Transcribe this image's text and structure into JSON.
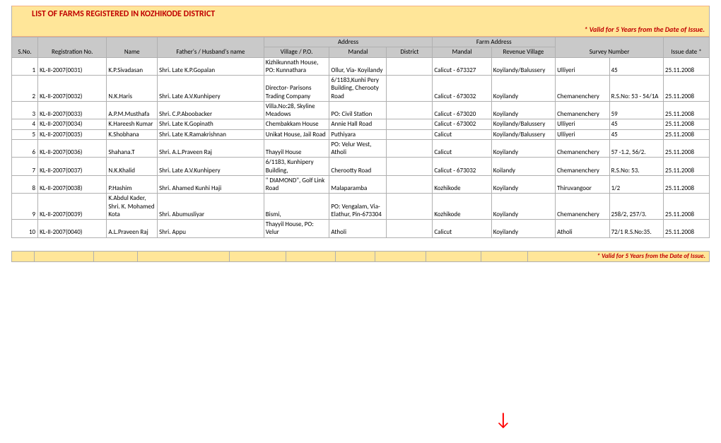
{
  "title": "LIST OF FARMS REGISTERED IN  KOZHIKODE DISTRICT",
  "valid_note": "* Valid for 5 Years from the Date of Issue.",
  "headers": {
    "sno": "S.No.",
    "reg": "Registration No.",
    "name": "Name",
    "father": "Father's / Husband's name",
    "address_group": "Address",
    "farm_group": "Farm Address",
    "village": "Village / P.O.",
    "mandal": "Mandal",
    "district": "District",
    "farm_mandal": "Mandal",
    "revenue": "Revenue Village",
    "survey": "Survey Number",
    "issue": "Issue date *"
  },
  "rows": [
    {
      "sno": "1",
      "reg": "KL-II-2007(0031)",
      "name": "K.P.Sivadasan",
      "father": "Shri. Late K.P.Gopalan",
      "village": "Kizhikunnath House, PO: Kunnathara",
      "mandal": "Ollur, Via- Koyilandy",
      "district": "",
      "fmandal": "Calicut - 673327",
      "revenue": "Koyilandy/Balussery",
      "survey": "Ulliyeri",
      "survey2": "45",
      "issue": "25.11.2008"
    },
    {
      "sno": "2",
      "reg": "KL-II-2007(0032)",
      "name": "N.K.Haris",
      "father": "Shri. Late A.V.Kunhipery",
      "village": "Director- Parisons Trading Company",
      "mandal": "6/1183,Kunhi Pery Building, Cherooty Road",
      "district": "",
      "fmandal": "Calicut - 673032",
      "revenue": "Koyilandy",
      "survey": "Chemanenchery",
      "survey2": "R.S.No: 53 - 54/1A",
      "issue": "25.11.2008"
    },
    {
      "sno": "3",
      "reg": "KL-II-2007(0033)",
      "name": "A.P.M.Musthafa",
      "father": "Shri. C.P.Aboobacker",
      "village": "Villa.No:28, Skyline Meadows",
      "mandal": "PO: Civil Station",
      "district": "",
      "fmandal": "Calicut - 673020",
      "revenue": "Koyilandy",
      "survey": "Chemanenchery",
      "survey2": "59",
      "issue": "25.11.2008"
    },
    {
      "sno": "4",
      "reg": "KL-II-2007(0034)",
      "name": "K.Hareesh Kumar",
      "father": "Shri. Late K.Gopinath",
      "village": "Chembakkam House",
      "mandal": "Annie Hall Road",
      "district": "",
      "fmandal": "Calicut - 673002",
      "revenue": "Koyilandy/Balussery",
      "survey": "Ulliyeri",
      "survey2": "45",
      "issue": "25.11.2008"
    },
    {
      "sno": "5",
      "reg": "KL-II-2007(0035)",
      "name": "K.Shobhana",
      "father": "Shri. Late K.Ramakrishnan",
      "village": "Unikat House, Jail Road",
      "mandal": "Puthiyara",
      "district": "",
      "fmandal": "Calicut",
      "revenue": "Koyilandy/Balussery",
      "survey": "Ulliyeri",
      "survey2": "45",
      "issue": "25.11.2008"
    },
    {
      "sno": "6",
      "reg": "KL-II-2007(0036)",
      "name": "Shahana.T",
      "father": "Shri. A.L.Praveen Raj",
      "village": "Thayyil House",
      "mandal": "PO: Velur West, Atholi",
      "district": "",
      "fmandal": "Calicut",
      "revenue": "Koyilandy",
      "survey": "Chemanenchery",
      "survey2": "57 -1.2, 56/2.",
      "issue": "25.11.2008"
    },
    {
      "sno": "7",
      "reg": "KL-II-2007(0037)",
      "name": "N.K.Khalid",
      "father": "Shri. Late A.V.Kunhipery",
      "village": "6/1183, Kunhipery Building,",
      "mandal": "Cherootty Road",
      "district": "",
      "fmandal": "Calicut - 673032",
      "revenue": "Koilandy",
      "survey": "Chemanenchery",
      "survey2": "R.S.No: 53.",
      "issue": "25.11.2008"
    },
    {
      "sno": "8",
      "reg": "KL-II-2007(0038)",
      "name": "P.Hashim",
      "father": "Shri. Ahamed Kunhi Haji",
      "village": "\" DIAMOND\", Golf Link Road",
      "mandal": "Malaparamba",
      "district": "",
      "fmandal": "Kozhikode",
      "revenue": "Koyilandy",
      "survey": "Thiruvangoor",
      "survey2": "1/2",
      "issue": "25.11.2008"
    },
    {
      "sno": "9",
      "reg": "KL-II-2007(0039)",
      "name": "K.Abdul Kader, Shri. K. Mohamed Kota",
      "father": "Shri. Abumusliyar",
      "village": "Bismi,",
      "mandal": "PO: Vengalam, Via-Elathur, Pin-673304",
      "district": "",
      "fmandal": "Kozhikode",
      "revenue": "Koyilandy",
      "survey": "Chemanenchery",
      "survey2": "258/2, 257/3.",
      "issue": "25.11.2008"
    },
    {
      "sno": "10",
      "reg": "KL-II-2007(0040)",
      "name": "A.L.Praveen Raj",
      "father": "Shri. Appu",
      "village": "Thayyil House, PO: Velur",
      "mandal": "Atholi",
      "district": "",
      "fmandal": "Calicut",
      "revenue": "Koyilandy",
      "survey": "Atholi",
      "survey2": "72/1 R.S.No:35.",
      "issue": "25.11.2008"
    }
  ],
  "footer_segments": [
    32,
    84,
    62,
    130,
    80,
    70,
    56,
    72,
    78,
    66
  ],
  "arrow_glyph": "↓"
}
